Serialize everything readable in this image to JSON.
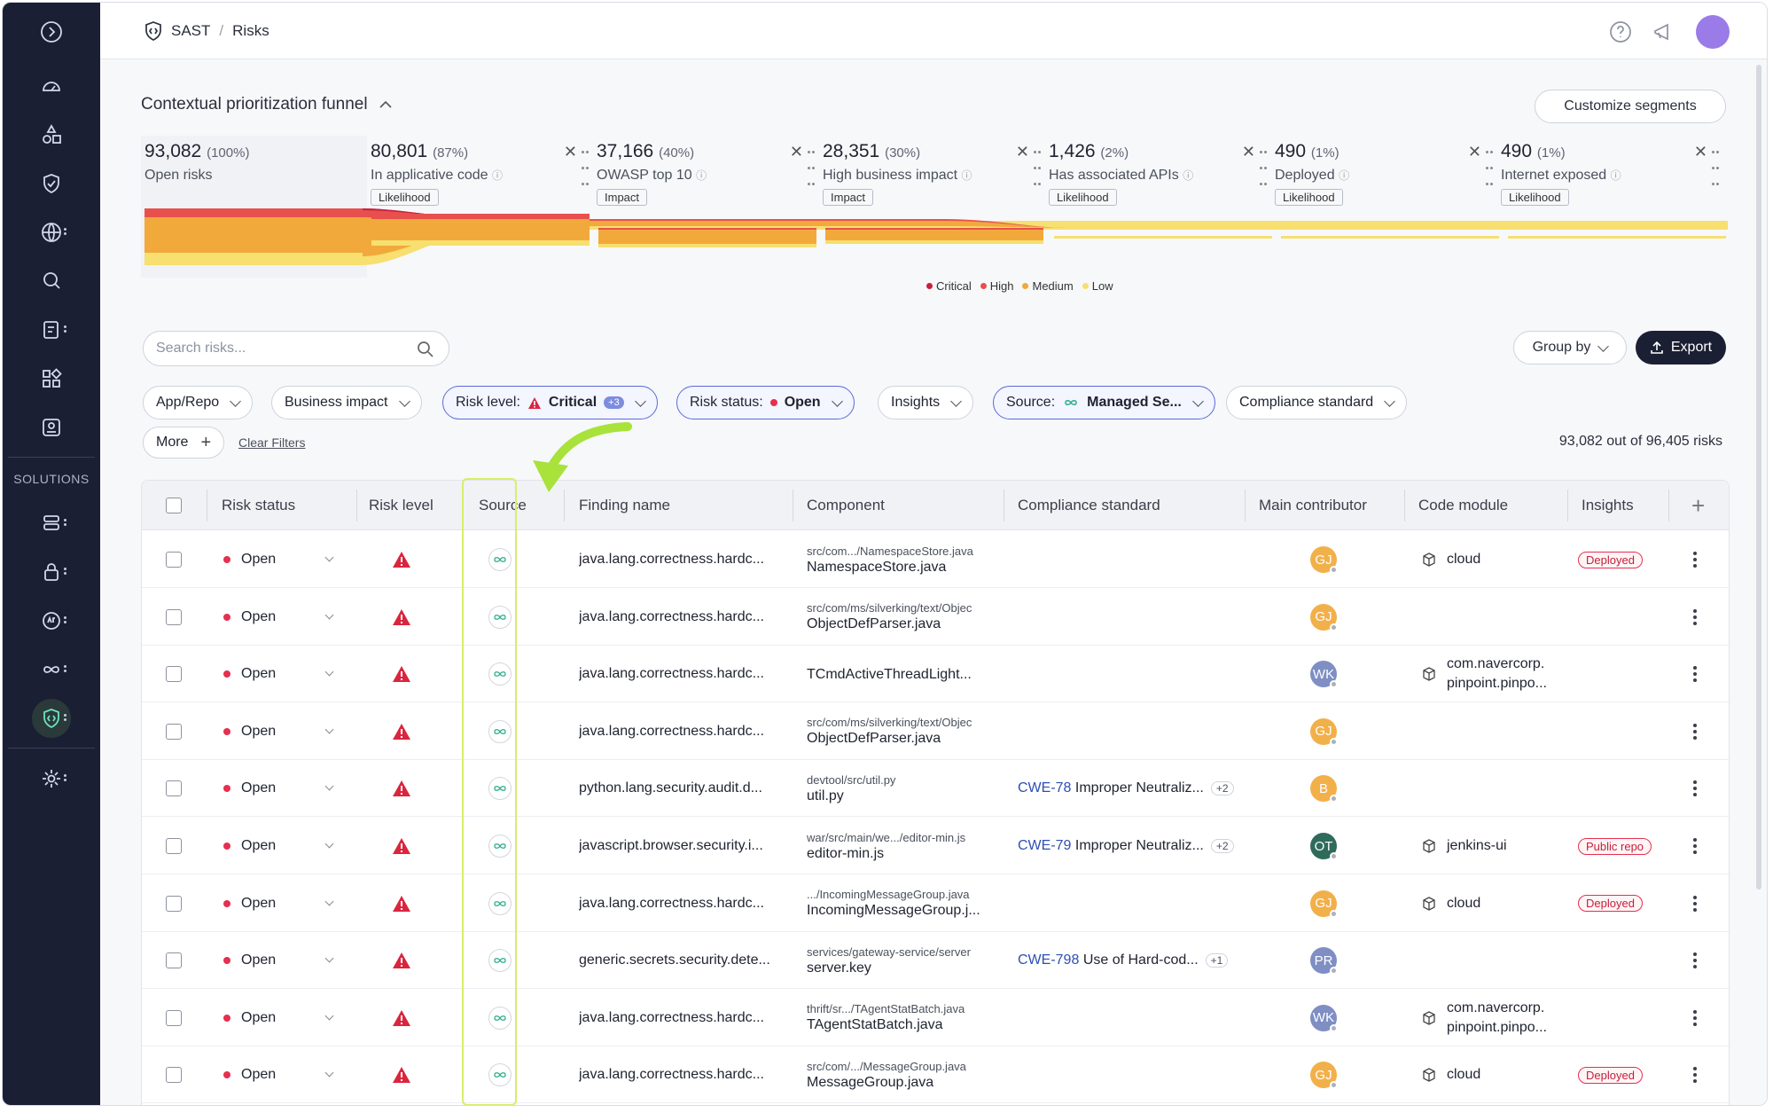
{
  "breadcrumb": {
    "app": "SAST",
    "page": "Risks"
  },
  "funnel": {
    "title": "Contextual prioritization funnel",
    "customize_label": "Customize segments",
    "segments": [
      {
        "count": "93,082",
        "pct": "(100%)",
        "label": "Open risks",
        "tag": ""
      },
      {
        "count": "80,801",
        "pct": "(87%)",
        "label": "In applicative code",
        "tag": "Likelihood"
      },
      {
        "count": "37,166",
        "pct": "(40%)",
        "label": "OWASP top 10",
        "tag": "Impact"
      },
      {
        "count": "28,351",
        "pct": "(30%)",
        "label": "High business impact",
        "tag": "Impact"
      },
      {
        "count": "1,426",
        "pct": "(2%)",
        "label": "Has associated APIs",
        "tag": "Likelihood"
      },
      {
        "count": "490",
        "pct": "(1%)",
        "label": "Deployed",
        "tag": "Likelihood"
      },
      {
        "count": "490",
        "pct": "(1%)",
        "label": "Internet exposed",
        "tag": "Likelihood"
      }
    ],
    "legend": [
      "Critical",
      "High",
      "Medium",
      "Low"
    ],
    "colors": {
      "critical": "#c8203f",
      "high": "#e8504e",
      "medium": "#f2a93b",
      "low": "#f7df70"
    }
  },
  "toolbar": {
    "search_placeholder": "Search risks...",
    "group_by": "Group by",
    "export": "Export"
  },
  "filters": {
    "app_repo": "App/Repo",
    "business_impact": "Business impact",
    "risk_level_key": "Risk level:",
    "risk_level_val": "Critical",
    "risk_level_more": "+3",
    "risk_status_key": "Risk status:",
    "risk_status_val": "Open",
    "insights": "Insights",
    "source_key": "Source:",
    "source_val": "Managed Se...",
    "compliance": "Compliance standard",
    "more": "More",
    "clear": "Clear Filters",
    "count": "93,082 out of 96,405 risks"
  },
  "sidebar": {
    "solutions_label": "SOLUTIONS"
  },
  "table": {
    "headers": [
      "Risk status",
      "Risk level",
      "Source",
      "Finding name",
      "Component",
      "Compliance standard",
      "Main contributor",
      "Code module",
      "Insights"
    ],
    "rows": [
      {
        "status": "Open",
        "finding": "java.lang.correctness.hardc...",
        "path": "src/com.../NamespaceStore.java",
        "file": "NamespaceStore.java",
        "cwe": "",
        "cwe_text": "",
        "cwe_more": "",
        "avatar": "GJ",
        "avatar_color": "#f2b04a",
        "module": "cloud",
        "module2": "",
        "insight": "Deployed"
      },
      {
        "status": "Open",
        "finding": "java.lang.correctness.hardc...",
        "path": "src/com/ms/silverking/text/Objec",
        "file": "ObjectDefParser.java",
        "cwe": "",
        "cwe_text": "",
        "cwe_more": "",
        "avatar": "GJ",
        "avatar_color": "#f2b04a",
        "module": "",
        "module2": "",
        "insight": ""
      },
      {
        "status": "Open",
        "finding": "java.lang.correctness.hardc...",
        "path": "",
        "file": "TCmdActiveThreadLight...",
        "cwe": "",
        "cwe_text": "",
        "cwe_more": "",
        "avatar": "WK",
        "avatar_color": "#7f8fc4",
        "module": "com.navercorp.",
        "module2": "pinpoint.pinpo...",
        "insight": ""
      },
      {
        "status": "Open",
        "finding": "java.lang.correctness.hardc...",
        "path": "src/com/ms/silverking/text/Objec",
        "file": "ObjectDefParser.java",
        "cwe": "",
        "cwe_text": "",
        "cwe_more": "",
        "avatar": "GJ",
        "avatar_color": "#f2b04a",
        "module": "",
        "module2": "",
        "insight": ""
      },
      {
        "status": "Open",
        "finding": "python.lang.security.audit.d...",
        "path": "devtool/src/util.py",
        "file": "util.py",
        "cwe": "CWE-78",
        "cwe_text": "Improper Neutraliz...",
        "cwe_more": "+2",
        "avatar": "B",
        "avatar_color": "#f2b04a",
        "module": "",
        "module2": "",
        "insight": ""
      },
      {
        "status": "Open",
        "finding": "javascript.browser.security.i...",
        "path": "war/src/main/we.../editor-min.js",
        "file": "editor-min.js",
        "cwe": "CWE-79",
        "cwe_text": "Improper Neutraliz...",
        "cwe_more": "+2",
        "avatar": "OT",
        "avatar_color": "#2f6b5a",
        "module": "jenkins-ui",
        "module2": "",
        "insight": "Public repo"
      },
      {
        "status": "Open",
        "finding": "java.lang.correctness.hardc...",
        "path": ".../IncomingMessageGroup.java",
        "file": "IncomingMessageGroup.j...",
        "cwe": "",
        "cwe_text": "",
        "cwe_more": "",
        "avatar": "GJ",
        "avatar_color": "#f2b04a",
        "module": "cloud",
        "module2": "",
        "insight": "Deployed"
      },
      {
        "status": "Open",
        "finding": "generic.secrets.security.dete...",
        "path": "services/gateway-service/server",
        "file": "server.key",
        "cwe": "CWE-798",
        "cwe_text": "Use of Hard-cod...",
        "cwe_more": "+1",
        "avatar": "PR",
        "avatar_color": "#7f8fc4",
        "module": "",
        "module2": "",
        "insight": ""
      },
      {
        "status": "Open",
        "finding": "java.lang.correctness.hardc...",
        "path": "thrift/sr.../TAgentStatBatch.java",
        "file": "TAgentStatBatch.java",
        "cwe": "",
        "cwe_text": "",
        "cwe_more": "",
        "avatar": "WK",
        "avatar_color": "#7f8fc4",
        "module": "com.navercorp.",
        "module2": "pinpoint.pinpo...",
        "insight": ""
      },
      {
        "status": "Open",
        "finding": "java.lang.correctness.hardc...",
        "path": "src/com/.../MessageGroup.java",
        "file": "MessageGroup.java",
        "cwe": "",
        "cwe_text": "",
        "cwe_more": "",
        "avatar": "GJ",
        "avatar_color": "#f2b04a",
        "module": "cloud",
        "module2": "",
        "insight": "Deployed"
      }
    ]
  }
}
